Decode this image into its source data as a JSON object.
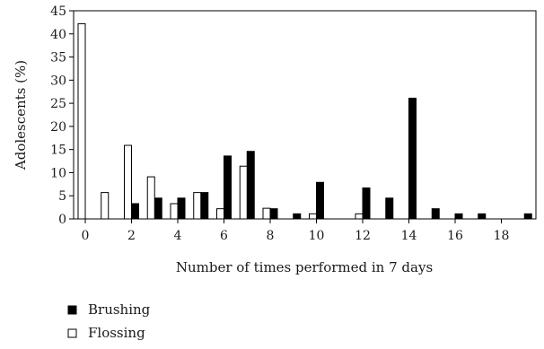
{
  "chart_data": {
    "type": "bar",
    "title": "",
    "xlabel": "Number of times performed in 7 days",
    "ylabel": "Adolescents (%)",
    "ylim": [
      0,
      45
    ],
    "yticks": [
      0,
      5,
      10,
      15,
      20,
      25,
      30,
      35,
      40,
      45
    ],
    "xticks": [
      0,
      2,
      4,
      6,
      8,
      10,
      12,
      14,
      16,
      18
    ],
    "categories": [
      0,
      1,
      2,
      3,
      4,
      5,
      6,
      7,
      8,
      9,
      10,
      11,
      12,
      13,
      14,
      15,
      16,
      17,
      18,
      19
    ],
    "grid": false,
    "legend_position": "bottom-left",
    "series": [
      {
        "name": "Brushing",
        "color": "#000000",
        "values": [
          0,
          0,
          3.3,
          4.5,
          4.5,
          5.7,
          13.6,
          14.6,
          2.2,
          1.1,
          7.9,
          0,
          6.7,
          4.5,
          26.1,
          2.2,
          1.1,
          1.1,
          0,
          1.1
        ]
      },
      {
        "name": "Flossing",
        "color": "#ffffff",
        "values": [
          42.2,
          5.7,
          15.9,
          9.1,
          3.3,
          5.7,
          2.2,
          11.4,
          2.3,
          0,
          1.1,
          0,
          1.1,
          0,
          0,
          0,
          0,
          0,
          0,
          0
        ]
      }
    ]
  }
}
